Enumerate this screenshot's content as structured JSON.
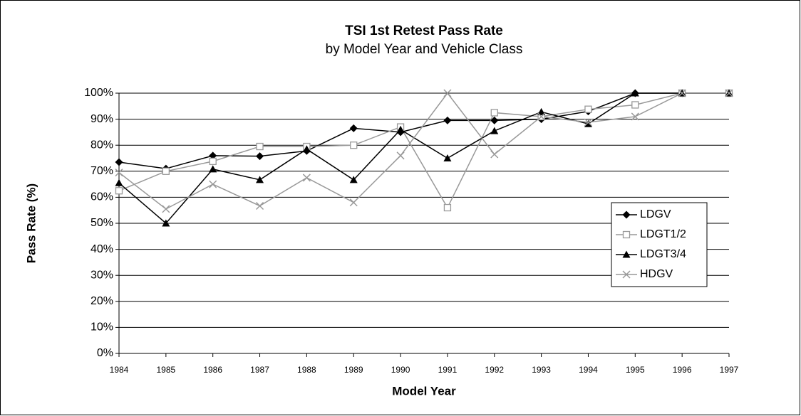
{
  "chart_data": {
    "type": "line",
    "title": "TSI 1st Retest Pass Rate",
    "subtitle": "by Model Year and Vehicle Class",
    "x_label": "Model Year",
    "y_label": "Pass Rate (%)",
    "x": [
      1984,
      1985,
      1986,
      1987,
      1988,
      1989,
      1990,
      1991,
      1992,
      1993,
      1994,
      1995,
      1996,
      1997
    ],
    "xlim": [
      1984,
      1997
    ],
    "xticks": [
      1984,
      1985,
      1986,
      1987,
      1988,
      1989,
      1990,
      1991,
      1992,
      1993,
      1994,
      1995,
      1996,
      1997
    ],
    "ylim": [
      0,
      100
    ],
    "yticks": [
      {
        "value": 0,
        "label": "0%"
      },
      {
        "value": 10,
        "label": "10%"
      },
      {
        "value": 20,
        "label": "20%"
      },
      {
        "value": 30,
        "label": "30%"
      },
      {
        "value": 40,
        "label": "40%"
      },
      {
        "value": 50,
        "label": "50%"
      },
      {
        "value": 60,
        "label": "60%"
      },
      {
        "value": 70,
        "label": "70%"
      },
      {
        "value": 80,
        "label": "80%"
      },
      {
        "value": 90,
        "label": "90%"
      },
      {
        "value": 100,
        "label": "100%"
      }
    ],
    "grid": true,
    "legend": "right",
    "series": [
      {
        "name": "LDGV",
        "color": "#000000",
        "marker": "diamond",
        "values": [
          73.5,
          71,
          76,
          75.8,
          77.8,
          86.5,
          85,
          89.5,
          89.5,
          90,
          93,
          100,
          100,
          100
        ]
      },
      {
        "name": "LDGT1/2",
        "color": "#999999",
        "marker": "square",
        "values": [
          62.5,
          70,
          73.8,
          79.5,
          79.5,
          80,
          87,
          56,
          92.5,
          91,
          93.8,
          95.5,
          100,
          100
        ]
      },
      {
        "name": "LDGT3/4",
        "color": "#000000",
        "marker": "triangle",
        "values": [
          65.5,
          50,
          70.8,
          66.7,
          78.5,
          66.7,
          86,
          75,
          85.5,
          92.8,
          88.2,
          100,
          100,
          100
        ]
      },
      {
        "name": "HDGV",
        "color": "#999999",
        "marker": "x",
        "values": [
          69.5,
          55.5,
          65,
          56.7,
          67.5,
          58,
          76,
          100,
          76.5,
          91,
          88.8,
          91,
          100,
          100
        ]
      }
    ]
  }
}
